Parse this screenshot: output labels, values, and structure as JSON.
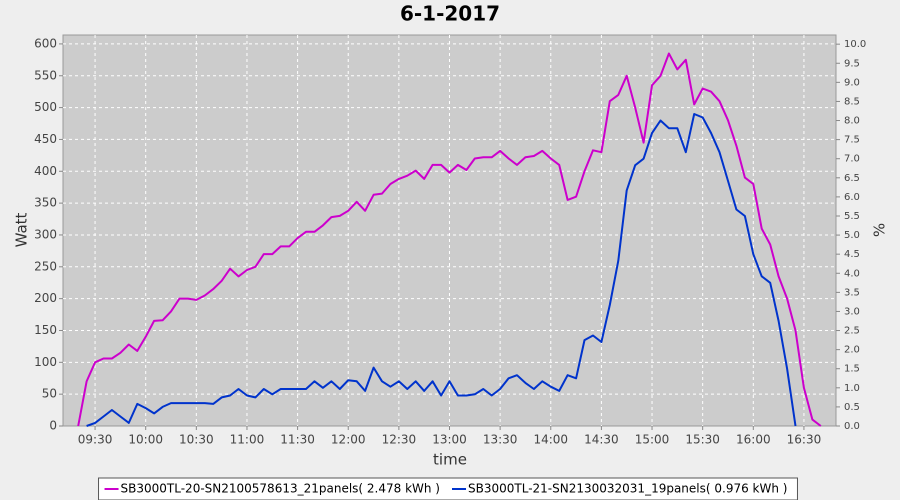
{
  "chart_data": {
    "type": "line",
    "title": "6-1-2017",
    "x_label": "time",
    "y_label": "Watt",
    "y2_label": "%",
    "x": [
      "09:20",
      "09:25",
      "09:30",
      "09:35",
      "09:40",
      "09:45",
      "09:50",
      "09:55",
      "10:00",
      "10:05",
      "10:10",
      "10:15",
      "10:20",
      "10:25",
      "10:30",
      "10:35",
      "10:40",
      "10:45",
      "10:50",
      "10:55",
      "11:00",
      "11:05",
      "11:10",
      "11:15",
      "11:20",
      "11:25",
      "11:30",
      "11:35",
      "11:40",
      "11:45",
      "11:50",
      "11:55",
      "12:00",
      "12:05",
      "12:10",
      "12:15",
      "12:20",
      "12:25",
      "12:30",
      "12:35",
      "12:40",
      "12:45",
      "12:50",
      "12:55",
      "13:00",
      "13:05",
      "13:10",
      "13:15",
      "13:20",
      "13:25",
      "13:30",
      "13:35",
      "13:40",
      "13:45",
      "13:50",
      "13:55",
      "14:00",
      "14:05",
      "14:10",
      "14:15",
      "14:20",
      "14:25",
      "14:30",
      "14:35",
      "14:40",
      "14:45",
      "14:50",
      "14:55",
      "15:00",
      "15:05",
      "15:10",
      "15:15",
      "15:20",
      "15:25",
      "15:30",
      "15:35",
      "15:40",
      "15:45",
      "15:50",
      "15:55",
      "16:00",
      "16:05",
      "16:10",
      "16:15",
      "16:20",
      "16:25",
      "16:30",
      "16:35",
      "16:40"
    ],
    "series": [
      {
        "name": "SB3000TL-20-SN2100578613_21panels( 2.478 kWh )",
        "color": "#cc00cc",
        "axis": "y",
        "values": [
          0,
          70,
          100,
          106,
          106,
          115,
          128,
          118,
          140,
          165,
          166,
          180,
          200,
          200,
          198,
          205,
          215,
          228,
          247,
          235,
          245,
          250,
          270,
          270,
          282,
          282,
          295,
          305,
          305,
          315,
          328,
          330,
          338,
          352,
          338,
          363,
          365,
          380,
          388,
          393,
          401,
          388,
          410,
          410,
          398,
          410,
          402,
          420,
          422,
          422,
          432,
          420,
          410,
          422,
          424,
          432,
          420,
          410,
          355,
          360,
          400,
          433,
          430,
          510,
          520,
          550,
          500,
          445,
          535,
          550,
          585,
          560,
          575,
          505,
          530,
          525,
          510,
          480,
          440,
          390,
          380,
          310,
          285,
          235,
          200,
          150,
          60,
          10,
          0
        ]
      },
      {
        "name": "SB3000TL-21-SN2130032031_19panels( 0.976 kWh )",
        "color": "#0033cc",
        "axis": "y2",
        "values": [
          null,
          0,
          0.08,
          0.25,
          0.42,
          0.25,
          0.08,
          0.58,
          0.47,
          0.33,
          0.5,
          0.6,
          0.6,
          0.6,
          0.6,
          0.6,
          0.58,
          0.75,
          0.8,
          0.97,
          0.8,
          0.75,
          0.97,
          0.83,
          0.97,
          0.97,
          0.97,
          0.97,
          1.17,
          1.0,
          1.17,
          0.97,
          1.2,
          1.17,
          0.92,
          1.53,
          1.17,
          1.03,
          1.17,
          0.97,
          1.17,
          0.92,
          1.17,
          0.8,
          1.17,
          0.8,
          0.8,
          0.83,
          0.97,
          0.8,
          0.97,
          1.25,
          1.33,
          1.13,
          0.97,
          1.17,
          1.03,
          0.92,
          1.33,
          1.25,
          2.25,
          2.37,
          2.2,
          3.17,
          4.33,
          6.17,
          6.83,
          7.0,
          7.67,
          8.0,
          7.8,
          7.8,
          7.17,
          8.17,
          8.08,
          7.67,
          7.17,
          6.42,
          5.67,
          5.5,
          4.5,
          3.92,
          3.75,
          2.75,
          1.5,
          0,
          null,
          null,
          null
        ]
      }
    ],
    "xlim": [
      "09:11",
      "16:49"
    ],
    "xticks": [
      "09:30",
      "10:00",
      "10:30",
      "11:00",
      "11:30",
      "12:00",
      "12:30",
      "13:00",
      "13:30",
      "14:00",
      "14:30",
      "15:00",
      "15:30",
      "16:00",
      "16:30"
    ],
    "ylim": [
      0,
      614
    ],
    "yticks": [
      0,
      50,
      100,
      150,
      200,
      250,
      300,
      350,
      400,
      450,
      500,
      550,
      600
    ],
    "y2lim": [
      0,
      10.24
    ],
    "y2ticks": [
      {
        "value": 0,
        "label": "0.0"
      },
      0.5,
      {
        "value": 1,
        "label": "1.0"
      },
      1.5,
      {
        "value": 2,
        "label": "2.0"
      },
      2.5,
      {
        "value": 3,
        "label": "3.0"
      },
      3.5,
      {
        "value": 4,
        "label": "4.0"
      },
      4.5,
      {
        "value": 5,
        "label": "5.0"
      },
      5.5,
      {
        "value": 6,
        "label": "6.0"
      },
      6.5,
      {
        "value": 7,
        "label": "7.0"
      },
      7.5,
      {
        "value": 8,
        "label": "8.0"
      },
      8.5,
      {
        "value": 9,
        "label": "9.0"
      },
      9.5,
      {
        "value": 10,
        "label": "10.0"
      }
    ],
    "grid": true,
    "legend": "bottom"
  }
}
